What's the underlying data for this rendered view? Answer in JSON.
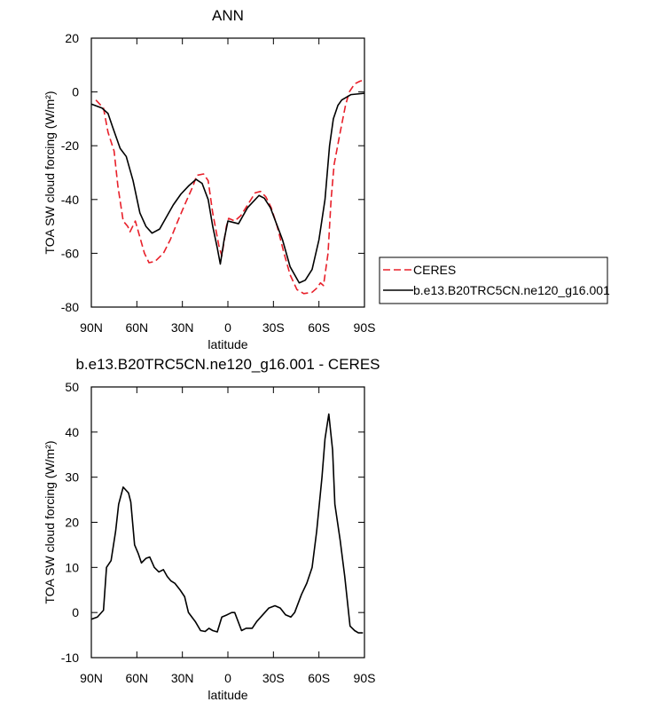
{
  "chart_data": [
    {
      "type": "line",
      "title": "ANN",
      "xlabel": "latitude",
      "ylabel": "TOA SW cloud forcing (W/m²)",
      "xlim": [
        90,
        -90
      ],
      "ylim": [
        -80,
        20
      ],
      "xticks": [
        {
          "value": 90,
          "label": "90N"
        },
        {
          "value": 60,
          "label": "60N"
        },
        {
          "value": 30,
          "label": "30N"
        },
        0,
        {
          "value": -30,
          "label": "30S"
        },
        {
          "value": -60,
          "label": "60S"
        },
        {
          "value": -90,
          "label": "90S"
        }
      ],
      "yticks": [
        20,
        0,
        -20,
        -40,
        -60,
        -80
      ],
      "legend": "right",
      "series": [
        {
          "name": "CERES",
          "color": "#e8202a",
          "linestyle": "dashed",
          "x": [
            87,
            82,
            79,
            75,
            72.5,
            69,
            66,
            64.5,
            61,
            58.5,
            55,
            52,
            48,
            42.5,
            38,
            33,
            28.5,
            23,
            20.5,
            16,
            13,
            10,
            6,
            4,
            1,
            -0.5,
            -4.5,
            -8.5,
            -13,
            -18,
            -21.5,
            -25,
            -28.5,
            -32.5,
            -37,
            -41,
            -45.5,
            -50,
            -55.5,
            -58.5,
            -61,
            -63,
            -66,
            -68,
            -70,
            -74,
            -77.5,
            -80,
            -83.5,
            -87,
            -90
          ],
          "values": [
            -3,
            -6,
            -15,
            -22,
            -35,
            -48,
            -50,
            -52,
            -48,
            -53,
            -60,
            -63.5,
            -63,
            -60,
            -55,
            -48,
            -42,
            -35,
            -31,
            -30.5,
            -33,
            -45,
            -57,
            -61,
            -50,
            -47,
            -48,
            -46,
            -42,
            -37.5,
            -37,
            -39,
            -43,
            -50,
            -60,
            -68,
            -73.5,
            -75,
            -74.5,
            -73,
            -71,
            -72,
            -60,
            -40,
            -27,
            -15,
            -5,
            0,
            3,
            4,
            4.5
          ]
        },
        {
          "name": "b.e13.B20TRC5CN.ne120_g16.001",
          "color": "#000000",
          "linestyle": "solid",
          "x": [
            90,
            83,
            79,
            76,
            71,
            67,
            62.5,
            58,
            54,
            50,
            45,
            41,
            36,
            31,
            26,
            21,
            17,
            13,
            10,
            7,
            5,
            2.5,
            0,
            -7,
            -13,
            -20.5,
            -24,
            -28,
            -32,
            -36,
            -41,
            -47,
            -51,
            -55.5,
            -60,
            -64,
            -67,
            -69.5,
            -72.5,
            -75,
            -81,
            -90
          ],
          "values": [
            -4.5,
            -6,
            -8,
            -13,
            -21,
            -24,
            -33,
            -45,
            -50,
            -52.5,
            -51,
            -47,
            -42,
            -38,
            -35,
            -32.5,
            -34,
            -40,
            -50,
            -58,
            -64,
            -55,
            -48,
            -49,
            -43,
            -38.5,
            -39.5,
            -43,
            -49,
            -55,
            -65,
            -71,
            -70,
            -66,
            -55,
            -40,
            -20,
            -10,
            -5,
            -3,
            -1,
            -0.5
          ]
        }
      ]
    },
    {
      "type": "line",
      "title": "b.e13.B20TRC5CN.ne120_g16.001 - CERES",
      "xlabel": "latitude",
      "ylabel": "TOA SW cloud forcing (W/m²)",
      "xlim": [
        90,
        -90
      ],
      "ylim": [
        -10,
        50
      ],
      "xticks": [
        {
          "value": 90,
          "label": "90N"
        },
        {
          "value": 60,
          "label": "60N"
        },
        {
          "value": 30,
          "label": "30N"
        },
        0,
        {
          "value": -30,
          "label": "30S"
        },
        {
          "value": -60,
          "label": "60S"
        },
        {
          "value": -90,
          "label": "90S"
        }
      ],
      "yticks": [
        50,
        40,
        30,
        20,
        10,
        0,
        -10
      ],
      "series": [
        {
          "color": "#000000",
          "linestyle": "solid",
          "x": [
            90,
            86,
            82,
            80,
            77,
            74,
            72,
            69,
            65.5,
            64,
            61.5,
            59,
            57,
            54,
            51.5,
            48.5,
            45.5,
            42.5,
            40,
            37.5,
            35,
            31.5,
            28.5,
            26,
            21.5,
            18,
            15,
            12.5,
            10,
            7,
            4,
            0.5,
            -2.5,
            -4.5,
            -9,
            -12,
            -16,
            -19,
            -23,
            -27,
            -31,
            -34.5,
            -38,
            -41.5,
            -44,
            -48.5,
            -52,
            -55.5,
            -58.5,
            -62,
            -64,
            -66.5,
            -69,
            -70.5,
            -74,
            -77,
            -80.5,
            -83.5,
            -86,
            -89
          ],
          "values": [
            -1.5,
            -1,
            0.5,
            10,
            11.5,
            18,
            24,
            27.8,
            26.5,
            24.5,
            15,
            13,
            11,
            12,
            12.3,
            10,
            9,
            9.5,
            8,
            7,
            6.5,
            5,
            3.5,
            0,
            -2,
            -4,
            -4.2,
            -3.5,
            -4,
            -4.3,
            -1,
            -0.5,
            0,
            0,
            -4,
            -3.5,
            -3.5,
            -2,
            -0.5,
            1,
            1.5,
            1,
            -0.5,
            -1,
            0,
            4,
            6.5,
            10,
            18,
            30,
            38.5,
            44,
            36,
            24,
            16,
            8,
            -3,
            -4,
            -4.5,
            -4.5
          ]
        }
      ]
    }
  ]
}
